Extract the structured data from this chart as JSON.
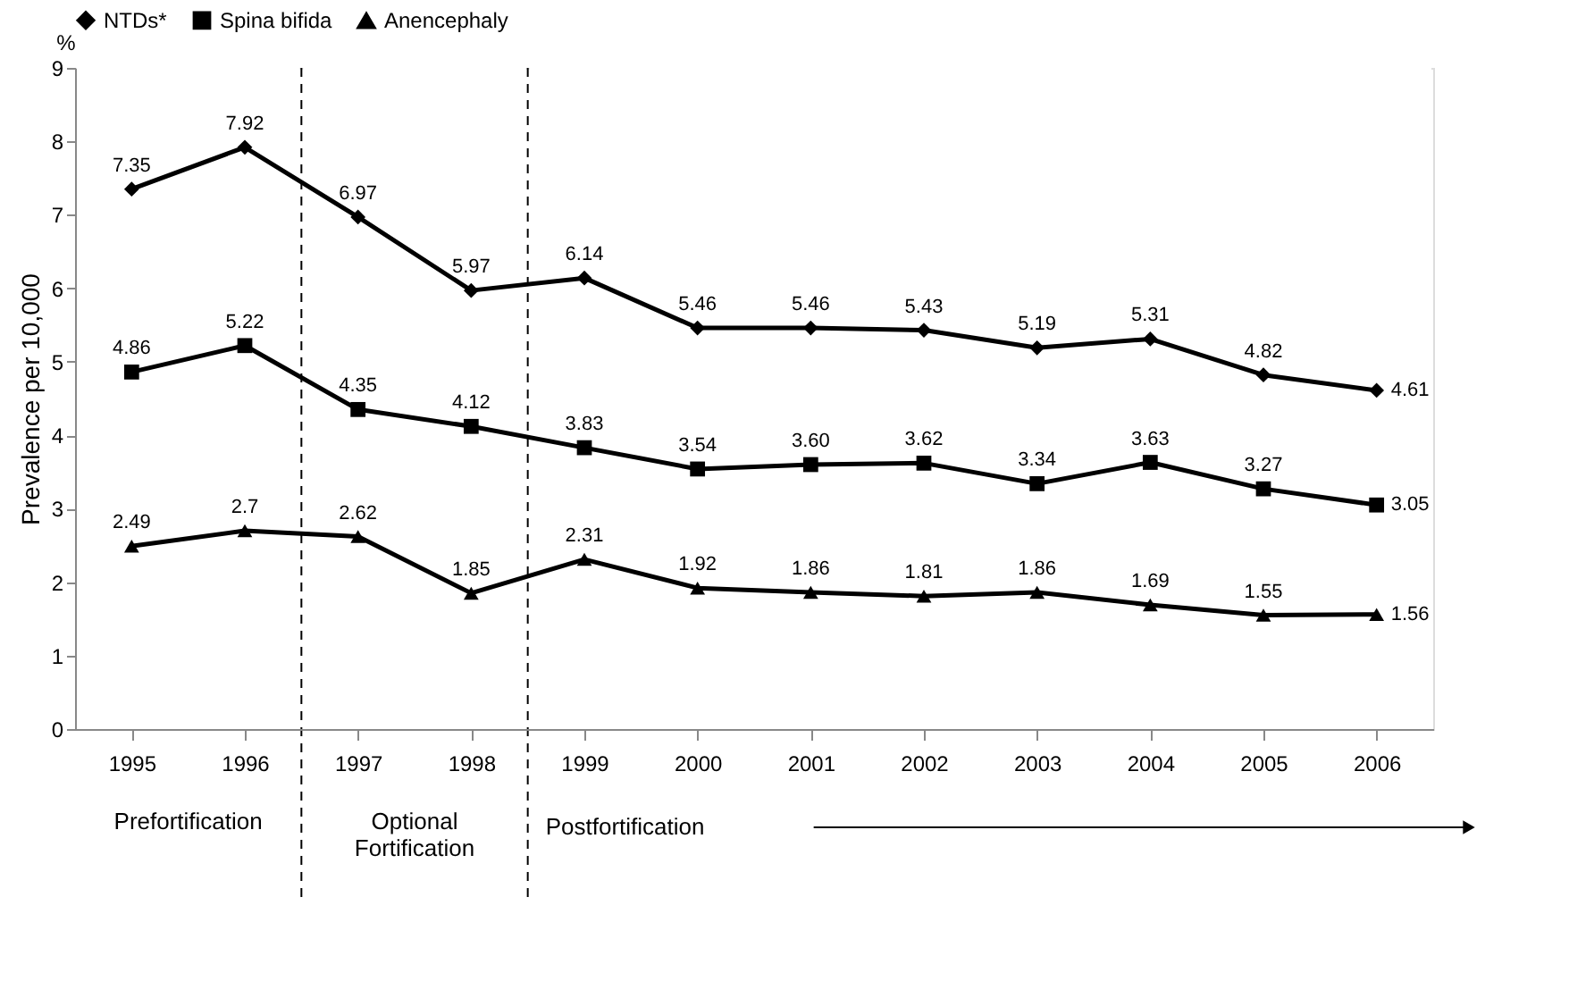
{
  "chart_data": {
    "type": "line",
    "ylabel": "Prevalence per 10,000",
    "annotations": [
      "%"
    ],
    "categories": [
      "1995",
      "1996",
      "1997",
      "1998",
      "1999",
      "2000",
      "2001",
      "2002",
      "2003",
      "2004",
      "2005",
      "2006"
    ],
    "series": [
      {
        "name": "NTDs*",
        "color": "#000000",
        "marker": "diamond",
        "values": [
          7.35,
          7.92,
          6.97,
          5.97,
          6.14,
          5.46,
          5.46,
          5.43,
          5.19,
          5.31,
          4.82,
          4.61
        ],
        "value_labels": [
          "7.35",
          "7.92",
          "6.97",
          "5.97",
          "6.14",
          "5.46",
          "5.46",
          "5.43",
          "5.19",
          "5.31",
          "4.82",
          "4.61"
        ]
      },
      {
        "name": "Spina bifida",
        "color": "#000000",
        "marker": "square",
        "values": [
          4.86,
          5.22,
          4.35,
          4.12,
          3.83,
          3.54,
          3.6,
          3.62,
          3.34,
          3.63,
          3.27,
          3.05
        ],
        "value_labels": [
          "4.86",
          "5.22",
          "4.35",
          "4.12",
          "3.83",
          "3.54",
          "3.60",
          "3.62",
          "3.34",
          "3.63",
          "3.27",
          "3.05"
        ]
      },
      {
        "name": "Anencephaly",
        "color": "#000000",
        "marker": "triangle",
        "values": [
          2.49,
          2.7,
          2.62,
          1.85,
          2.31,
          1.92,
          1.86,
          1.81,
          1.86,
          1.69,
          1.55,
          1.56
        ],
        "value_labels": [
          "2.49",
          "2.7",
          "2.62",
          "1.85",
          "2.31",
          "1.92",
          "1.86",
          "1.81",
          "1.86",
          "1.69",
          "1.55",
          "1.56"
        ]
      }
    ],
    "bands": [
      {
        "axis": "x",
        "from": "1995",
        "to": "1996",
        "label": "Prefortification",
        "color": "#ffffff"
      },
      {
        "axis": "x",
        "from": "1997",
        "to": "1998",
        "label": "Optional Fortification",
        "color": "#ffffff"
      },
      {
        "axis": "x",
        "from": "1999",
        "to": "2006",
        "label": "Postfortification",
        "color": "#ffffff"
      }
    ],
    "ylim": [
      0,
      9
    ],
    "yticks": [
      0,
      1,
      2,
      3,
      4,
      5,
      6,
      7,
      8,
      9
    ],
    "grid": false,
    "legend": "top",
    "line_style": "solid"
  }
}
